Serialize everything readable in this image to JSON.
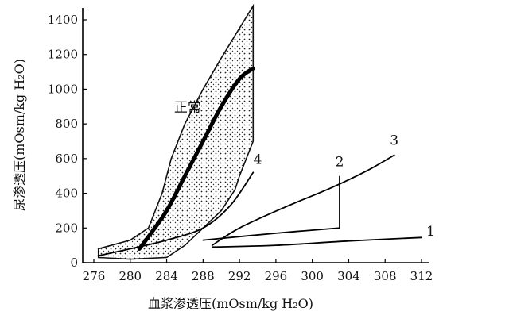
{
  "chart_data": {
    "type": "line",
    "xlabel": "血浆渗透压(mOsm/kg H₂O)",
    "ylabel": "尿渗透压(mOsm/kg H₂O)",
    "xlim": [
      274,
      314
    ],
    "ylim": [
      0,
      1500
    ],
    "xticks": [
      "276",
      "280",
      "284",
      "288",
      "292",
      "296",
      "300",
      "304",
      "308",
      "312"
    ],
    "yticks": [
      "0",
      "200",
      "400",
      "600",
      "800",
      "1000",
      "1200",
      "1400"
    ],
    "grid": false,
    "normal_region": {
      "label": "正常",
      "upper": [
        [
          276.5,
          80
        ],
        [
          280,
          130
        ],
        [
          282,
          200
        ],
        [
          283.5,
          400
        ],
        [
          284.5,
          600
        ],
        [
          286,
          800
        ],
        [
          287.5,
          950
        ],
        [
          288,
          1000
        ],
        [
          290,
          1180
        ],
        [
          293.5,
          1480
        ]
      ],
      "lower": [
        [
          276.5,
          30
        ],
        [
          280,
          20
        ],
        [
          284,
          30
        ],
        [
          286,
          100
        ],
        [
          288,
          200
        ],
        [
          290,
          300
        ],
        [
          291.5,
          420
        ],
        [
          292,
          500
        ],
        [
          293.5,
          700
        ]
      ]
    },
    "series": [
      {
        "name": "正常",
        "x": [
          281,
          282,
          284,
          286,
          288,
          290,
          292,
          293.5
        ],
        "y": [
          80,
          150,
          300,
          500,
          700,
          900,
          1060,
          1120
        ],
        "bold": true
      },
      {
        "name": "1",
        "x": [
          289,
          296,
          304,
          312
        ],
        "y": [
          90,
          100,
          125,
          145
        ]
      },
      {
        "name": "2",
        "x": [
          288,
          296,
          303
        ],
        "y": [
          130,
          170,
          200
        ],
        "segment": [
          [
            303,
            200
          ],
          [
            303,
            500
          ]
        ]
      },
      {
        "name": "3",
        "x": [
          289,
          292,
          297,
          302,
          306,
          309
        ],
        "y": [
          100,
          200,
          320,
          430,
          530,
          620
        ]
      },
      {
        "name": "4",
        "x": [
          276.5,
          280,
          284,
          288,
          291,
          293.5
        ],
        "y": [
          40,
          80,
          130,
          200,
          330,
          520
        ]
      }
    ],
    "series_labels": [
      {
        "text": "1",
        "x": 313,
        "y": 155
      },
      {
        "text": "2",
        "x": 303,
        "y": 555
      },
      {
        "text": "3",
        "x": 309,
        "y": 680
      },
      {
        "text": "4",
        "x": 294,
        "y": 570
      }
    ]
  }
}
